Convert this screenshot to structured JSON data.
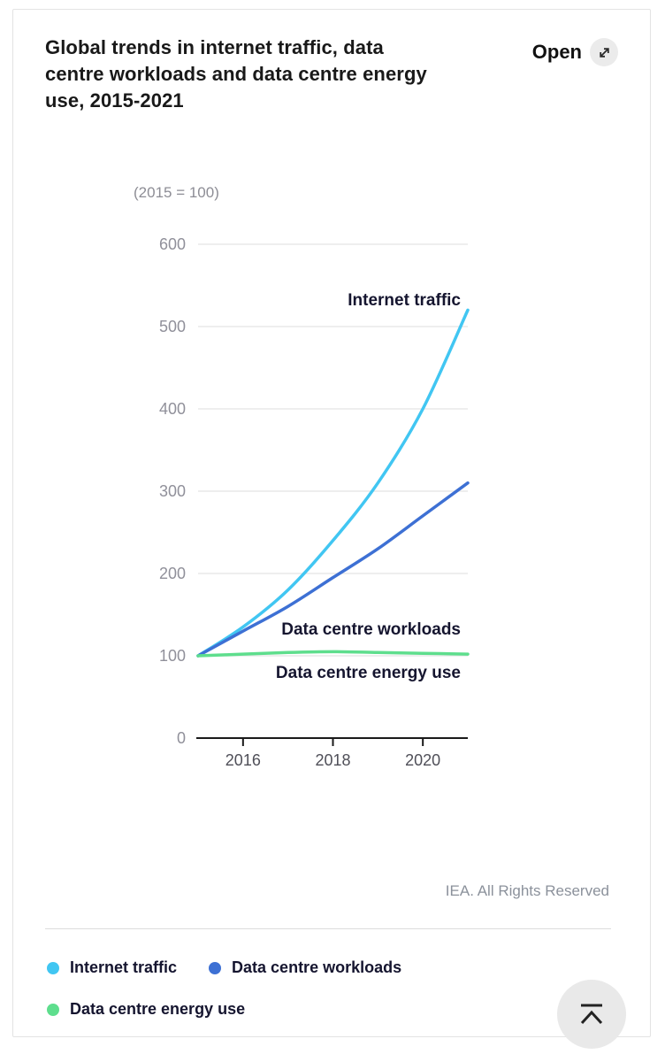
{
  "card": {
    "title": "Global trends in internet traffic, data centre workloads and data centre energy use, 2015-2021",
    "open_label": "Open",
    "credit": "IEA. All Rights Reserved"
  },
  "chart_data": {
    "type": "line",
    "title": "Global trends in internet traffic, data centre workloads and data centre energy use, 2015-2021",
    "unit_note": "(2015 = 100)",
    "x": [
      2015,
      2016,
      2017,
      2018,
      2019,
      2020,
      2021
    ],
    "series": [
      {
        "name": "Internet traffic",
        "color": "#41C6F2",
        "values": [
          100,
          135,
          180,
          240,
          310,
          400,
          520
        ]
      },
      {
        "name": "Data centre workloads",
        "color": "#3D70D4",
        "values": [
          100,
          130,
          160,
          195,
          230,
          270,
          310
        ]
      },
      {
        "name": "Data centre energy use",
        "color": "#5EDE8D",
        "values": [
          100,
          102,
          104,
          105,
          104,
          103,
          102
        ]
      }
    ],
    "ylim": [
      0,
      600
    ],
    "yticks": [
      0,
      100,
      200,
      300,
      400,
      500,
      600
    ],
    "xticks": [
      2016,
      2018,
      2020
    ],
    "grid": true,
    "legend_position": "bottom",
    "annotations": [
      "Internet traffic",
      "Data centre workloads",
      "Data centre energy use"
    ]
  },
  "colors": {
    "grid": "#e9e9e9",
    "axis": "#1a1a1a",
    "y_tick_label": "#90909a",
    "x_tick_label": "#4f4f58"
  }
}
